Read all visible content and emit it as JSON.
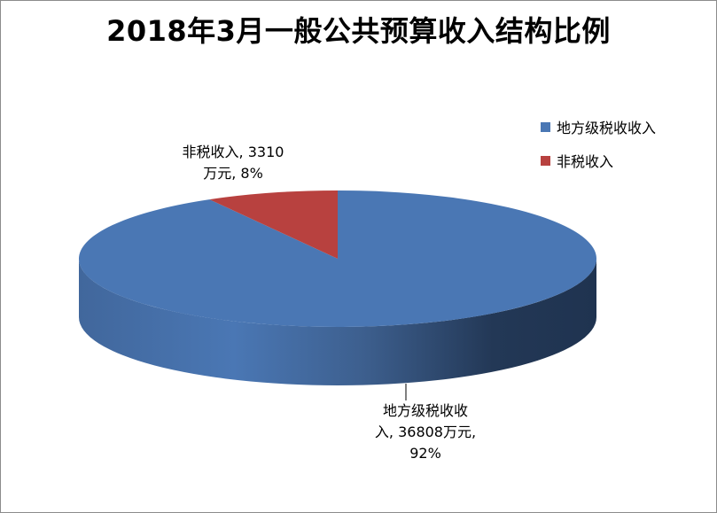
{
  "title": "2018年3月一般公共预算收入结构比例",
  "chart_data": {
    "type": "pie",
    "title": "2018年3月一般公共预算收入结构比例",
    "series": [
      {
        "name": "",
        "slices": [
          {
            "label": "地方级税收收入",
            "value": 36808,
            "percent": 92,
            "color": "#4a77b4",
            "data_label": {
              "line1": "地方级税收收",
              "line2": "入, 36808万元,",
              "line3": "92%"
            }
          },
          {
            "label": "非税收入",
            "value": 3310,
            "percent": 8,
            "color": "#b8413f",
            "data_label": {
              "line1": "非税收入, 3310",
              "line2": "万元, 8%"
            }
          }
        ]
      }
    ],
    "legend": {
      "position": "top-right",
      "items": [
        "地方级税收收入",
        "非税收入"
      ]
    },
    "style": "3d"
  }
}
